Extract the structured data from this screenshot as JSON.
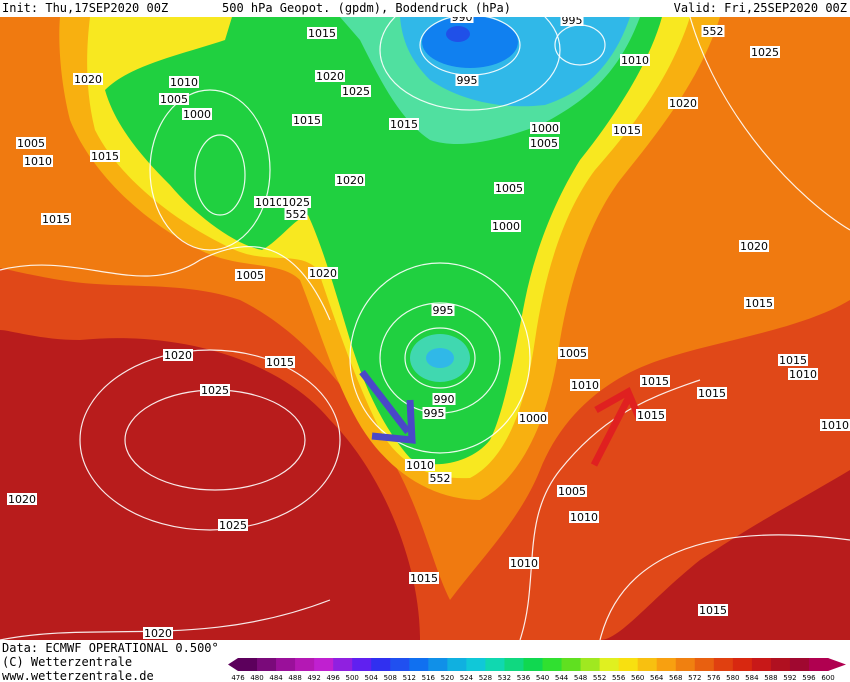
{
  "header": {
    "init": "Init: Thu,17SEP2020 00Z",
    "title": "500 hPa Geopot. (gpdm), Bodendruck (hPa)",
    "valid": "Valid: Fri,25SEP2020 00Z"
  },
  "footer": {
    "data_source": "Data: ECMWF OPERATIONAL 0.500°",
    "copyright": "(C) Wetterzentrale",
    "url": "www.wetterzentrale.de"
  },
  "map": {
    "pressure_labels": [
      1015,
      995,
      990,
      552,
      1025,
      1010,
      1020,
      1010,
      1020,
      1025,
      995,
      1005,
      1000,
      1015,
      1015,
      1020,
      1015,
      1000,
      1005,
      1005,
      1010,
      1015,
      1020,
      1005,
      1010,
      1025,
      552,
      1000,
      1015,
      1020,
      1005,
      1020,
      1015,
      995,
      1005,
      1020,
      1015,
      1015,
      1010,
      1015,
      1010,
      1015,
      1025,
      990,
      995,
      1000,
      1015,
      1010,
      1010,
      552,
      1020,
      1005,
      1025,
      1010,
      1010,
      1015,
      1015,
      1020
    ]
  },
  "legend": {
    "ticks": [
      476,
      480,
      484,
      488,
      492,
      496,
      500,
      504,
      508,
      512,
      516,
      520,
      524,
      528,
      532,
      536,
      540,
      544,
      548,
      552,
      556,
      560,
      564,
      568,
      572,
      576,
      580,
      584,
      588,
      592,
      596,
      600
    ],
    "colors": [
      "#5c005c",
      "#7a0a7a",
      "#9a109a",
      "#b418b4",
      "#c020d0",
      "#9020e0",
      "#6020f0",
      "#3030f0",
      "#2050f0",
      "#1070f0",
      "#1090e8",
      "#10b0e0",
      "#10c8d8",
      "#10d8b0",
      "#10d880",
      "#10d850",
      "#30e030",
      "#60e020",
      "#a0e820",
      "#e0f020",
      "#f8e010",
      "#f8c010",
      "#f8a010",
      "#f08010",
      "#e86010",
      "#e04010",
      "#d82810",
      "#c81818",
      "#b01020",
      "#a00830",
      "#b00050"
    ]
  }
}
